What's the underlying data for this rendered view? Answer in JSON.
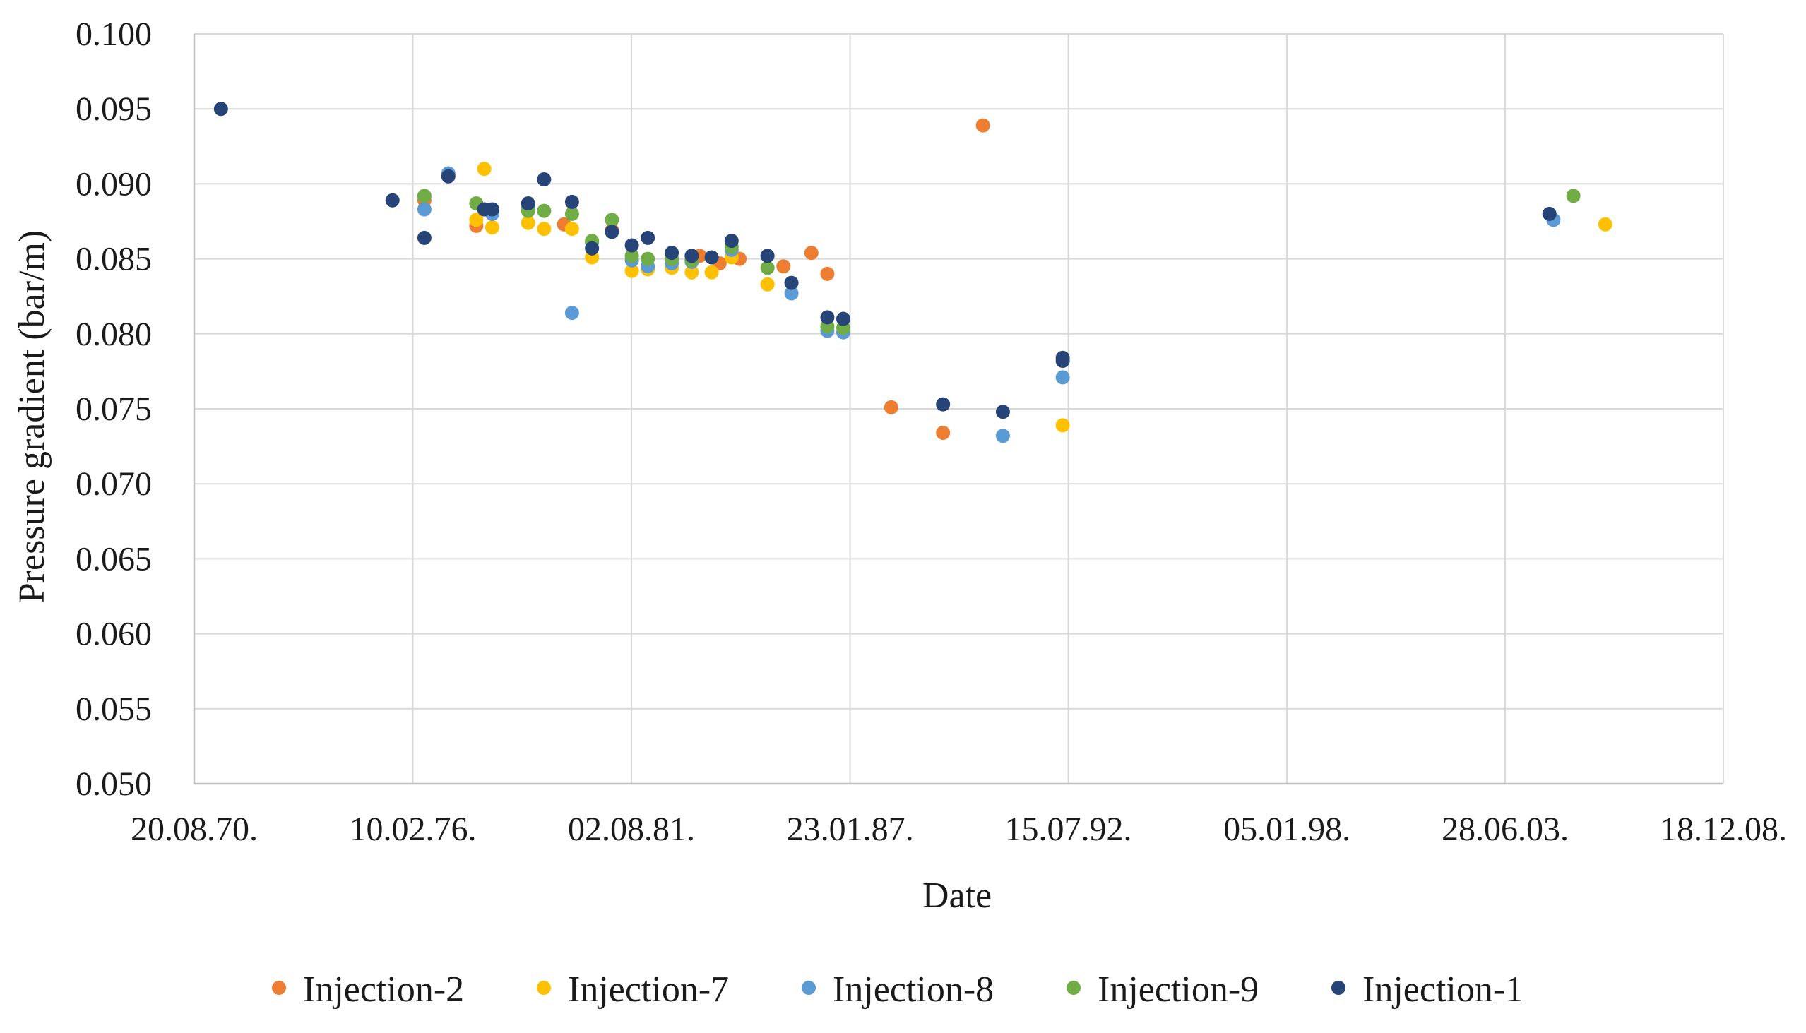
{
  "chart_data": {
    "type": "scatter",
    "title": "",
    "xlabel": "Date",
    "ylabel": "Pressure gradient (bar/m)",
    "ylim": [
      0.05,
      0.1
    ],
    "yticks": [
      "0.050",
      "0.055",
      "0.060",
      "0.065",
      "0.070",
      "0.075",
      "0.080",
      "0.085",
      "0.090",
      "0.095",
      "0.100"
    ],
    "xlim_year": [
      1970.63,
      2008.96
    ],
    "xticks": [
      {
        "label": "20.08.70.",
        "year": 1970.63
      },
      {
        "label": "10.02.76.",
        "year": 1976.11
      },
      {
        "label": "02.08.81.",
        "year": 1981.59
      },
      {
        "label": "23.01.87.",
        "year": 1987.07
      },
      {
        "label": "15.07.92.",
        "year": 1992.54
      },
      {
        "label": "05.01.98.",
        "year": 1998.02
      },
      {
        "label": "28.06.03.",
        "year": 2003.49
      },
      {
        "label": "18.12.08.",
        "year": 2008.96
      }
    ],
    "grid": true,
    "legend_position": "bottom",
    "series": [
      {
        "name": "Injection-2",
        "color": "#ED7D31",
        "points": [
          {
            "x": 1976.4,
            "y": 0.0889
          },
          {
            "x": 1977.7,
            "y": 0.0872
          },
          {
            "x": 1978.1,
            "y": 0.0882
          },
          {
            "x": 1979.0,
            "y": 0.0883
          },
          {
            "x": 1979.9,
            "y": 0.0873
          },
          {
            "x": 1981.1,
            "y": 0.0869
          },
          {
            "x": 1982.6,
            "y": 0.085
          },
          {
            "x": 1983.3,
            "y": 0.0852
          },
          {
            "x": 1983.8,
            "y": 0.0847
          },
          {
            "x": 1984.3,
            "y": 0.085
          },
          {
            "x": 1985.4,
            "y": 0.0845
          },
          {
            "x": 1986.1,
            "y": 0.0854
          },
          {
            "x": 1986.5,
            "y": 0.084
          },
          {
            "x": 1988.1,
            "y": 0.0751
          },
          {
            "x": 1989.4,
            "y": 0.0734
          },
          {
            "x": 1990.4,
            "y": 0.0939
          }
        ]
      },
      {
        "name": "Injection-7",
        "color": "#FFC000",
        "points": [
          {
            "x": 1977.7,
            "y": 0.0876
          },
          {
            "x": 1977.9,
            "y": 0.091
          },
          {
            "x": 1978.1,
            "y": 0.0871
          },
          {
            "x": 1979.0,
            "y": 0.0874
          },
          {
            "x": 1979.4,
            "y": 0.087
          },
          {
            "x": 1980.1,
            "y": 0.087
          },
          {
            "x": 1980.6,
            "y": 0.0851
          },
          {
            "x": 1981.6,
            "y": 0.0842
          },
          {
            "x": 1982.0,
            "y": 0.0843
          },
          {
            "x": 1982.6,
            "y": 0.0844
          },
          {
            "x": 1983.1,
            "y": 0.0841
          },
          {
            "x": 1983.6,
            "y": 0.0841
          },
          {
            "x": 1984.1,
            "y": 0.0851
          },
          {
            "x": 1985.0,
            "y": 0.0833
          },
          {
            "x": 1992.4,
            "y": 0.0739
          },
          {
            "x": 2006.0,
            "y": 0.0873
          }
        ]
      },
      {
        "name": "Injection-8",
        "color": "#5B9BD5",
        "points": [
          {
            "x": 1976.4,
            "y": 0.0883
          },
          {
            "x": 1977.0,
            "y": 0.0907
          },
          {
            "x": 1978.1,
            "y": 0.088
          },
          {
            "x": 1979.0,
            "y": 0.0884
          },
          {
            "x": 1980.1,
            "y": 0.0814
          },
          {
            "x": 1980.6,
            "y": 0.0861
          },
          {
            "x": 1981.6,
            "y": 0.0849
          },
          {
            "x": 1982.0,
            "y": 0.0845
          },
          {
            "x": 1982.6,
            "y": 0.0847
          },
          {
            "x": 1983.1,
            "y": 0.0848
          },
          {
            "x": 1984.1,
            "y": 0.0856
          },
          {
            "x": 1985.6,
            "y": 0.0827
          },
          {
            "x": 1986.5,
            "y": 0.0802
          },
          {
            "x": 1986.9,
            "y": 0.0801
          },
          {
            "x": 1990.9,
            "y": 0.0732
          },
          {
            "x": 1992.4,
            "y": 0.0771
          },
          {
            "x": 2004.7,
            "y": 0.0876
          }
        ]
      },
      {
        "name": "Injection-9",
        "color": "#70AD47",
        "points": [
          {
            "x": 1976.4,
            "y": 0.0892
          },
          {
            "x": 1977.7,
            "y": 0.0887
          },
          {
            "x": 1979.0,
            "y": 0.0882
          },
          {
            "x": 1979.4,
            "y": 0.0882
          },
          {
            "x": 1980.1,
            "y": 0.088
          },
          {
            "x": 1980.6,
            "y": 0.0862
          },
          {
            "x": 1981.1,
            "y": 0.0876
          },
          {
            "x": 1981.6,
            "y": 0.0852
          },
          {
            "x": 1982.0,
            "y": 0.085
          },
          {
            "x": 1982.6,
            "y": 0.085
          },
          {
            "x": 1983.1,
            "y": 0.0849
          },
          {
            "x": 1984.1,
            "y": 0.0858
          },
          {
            "x": 1985.0,
            "y": 0.0844
          },
          {
            "x": 1986.5,
            "y": 0.0805
          },
          {
            "x": 1986.9,
            "y": 0.0804
          },
          {
            "x": 2005.2,
            "y": 0.0892
          }
        ]
      },
      {
        "name": "Injection-1",
        "color": "#264478",
        "points": [
          {
            "x": 1971.3,
            "y": 0.095
          },
          {
            "x": 1975.6,
            "y": 0.0889
          },
          {
            "x": 1976.4,
            "y": 0.0864
          },
          {
            "x": 1977.0,
            "y": 0.0905
          },
          {
            "x": 1977.9,
            "y": 0.0883
          },
          {
            "x": 1978.1,
            "y": 0.0883
          },
          {
            "x": 1979.0,
            "y": 0.0887
          },
          {
            "x": 1979.4,
            "y": 0.0903
          },
          {
            "x": 1980.1,
            "y": 0.0888
          },
          {
            "x": 1980.6,
            "y": 0.0857
          },
          {
            "x": 1981.1,
            "y": 0.0868
          },
          {
            "x": 1981.6,
            "y": 0.0859
          },
          {
            "x": 1982.0,
            "y": 0.0864
          },
          {
            "x": 1982.6,
            "y": 0.0854
          },
          {
            "x": 1983.1,
            "y": 0.0852
          },
          {
            "x": 1983.6,
            "y": 0.0851
          },
          {
            "x": 1984.1,
            "y": 0.0862
          },
          {
            "x": 1985.0,
            "y": 0.0852
          },
          {
            "x": 1985.6,
            "y": 0.0834
          },
          {
            "x": 1986.5,
            "y": 0.0811
          },
          {
            "x": 1986.9,
            "y": 0.081
          },
          {
            "x": 1989.4,
            "y": 0.0753
          },
          {
            "x": 1990.9,
            "y": 0.0748
          },
          {
            "x": 1992.4,
            "y": 0.0784
          },
          {
            "x": 1992.4,
            "y": 0.0782
          },
          {
            "x": 2004.6,
            "y": 0.088
          }
        ]
      }
    ]
  }
}
